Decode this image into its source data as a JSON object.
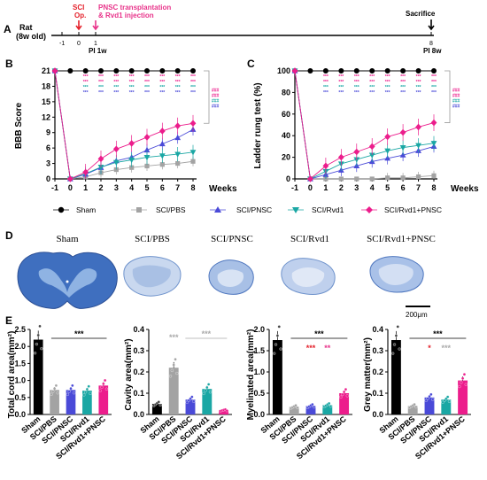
{
  "colors": {
    "sham": "#000000",
    "pbs": "#a3a3a3",
    "pnsc": "#4a4ad8",
    "rvd1": "#1aa7a4",
    "combo": "#ec1d8c",
    "red": "#e4202a",
    "pink": "#e8338a",
    "tissue": "#3f6fbf"
  },
  "timeline": {
    "panel": "A",
    "subject_line1": "Rat",
    "subject_line2": "(8w old)",
    "ticks": [
      "-1",
      "0",
      "1",
      "8"
    ],
    "sci_label1": "SCI",
    "sci_label2": "Op.",
    "pnsc_label1": "PNSC transplantation",
    "pnsc_label2": "& Rvd1 injection",
    "sacrifice_label": "Sacrifice",
    "pi1w": "PI 1w",
    "pi8w": "PI 8w"
  },
  "legend": {
    "items": [
      "Sham",
      "SCI/PBS",
      "SCI/PNSC",
      "SCI/Rvd1",
      "SCI/Rvd1+PNSC"
    ]
  },
  "tissue": {
    "panel": "D",
    "labels": [
      "Sham",
      "SCI/PBS",
      "SCI/PNSC",
      "SCI/Rvd1",
      "SCI/Rvd1+PNSC"
    ],
    "scale_bar": "200μm"
  },
  "chart_data": [
    {
      "panel": "B",
      "type": "line",
      "title": "",
      "xlabel": "Weeks",
      "ylabel": "BBB Score",
      "x": [
        -1,
        0,
        1,
        2,
        3,
        4,
        5,
        6,
        7,
        8
      ],
      "xticks": [
        "-1",
        "0",
        "1",
        "2",
        "3",
        "4",
        "5",
        "6",
        "7",
        "8"
      ],
      "yticks": [
        0,
        3,
        6,
        9,
        12,
        15,
        18,
        21
      ],
      "ylim": [
        0,
        21
      ],
      "series": [
        {
          "name": "Sham",
          "values": [
            21,
            21,
            21,
            21,
            21,
            21,
            21,
            21,
            21,
            21
          ]
        },
        {
          "name": "SCI/PBS",
          "values": [
            21,
            0,
            0.4,
            1.2,
            1.8,
            2.2,
            2.5,
            2.8,
            3.0,
            3.4
          ]
        },
        {
          "name": "SCI/PNSC",
          "values": [
            21,
            0,
            0.9,
            2.2,
            3.5,
            4.2,
            5.6,
            6.8,
            8.0,
            9.6
          ]
        },
        {
          "name": "SCI/Rvd1",
          "values": [
            21,
            0,
            1.0,
            2.3,
            3.2,
            3.7,
            4.2,
            4.5,
            4.8,
            5.2
          ]
        },
        {
          "name": "SCI/Rvd1+PNSC",
          "values": [
            21,
            0,
            1.3,
            3.9,
            5.8,
            6.9,
            8.1,
            9.3,
            10.3,
            10.8
          ]
        }
      ],
      "sig_stars": "***",
      "sig_hash": "###"
    },
    {
      "panel": "C",
      "type": "line",
      "title": "",
      "xlabel": "Weeks",
      "ylabel": "Ladder rung test (%)",
      "x": [
        -1,
        0,
        1,
        2,
        3,
        4,
        5,
        6,
        7,
        8
      ],
      "xticks": [
        "-1",
        "0",
        "1",
        "2",
        "3",
        "4",
        "5",
        "6",
        "7",
        "8"
      ],
      "yticks": [
        0,
        20,
        40,
        60,
        80,
        100
      ],
      "ylim": [
        0,
        100
      ],
      "series": [
        {
          "name": "Sham",
          "values": [
            100,
            100,
            100,
            100,
            100,
            100,
            100,
            100,
            100,
            100
          ]
        },
        {
          "name": "SCI/PBS",
          "values": [
            100,
            0,
            0,
            0,
            0,
            0,
            1,
            1,
            2,
            3
          ]
        },
        {
          "name": "SCI/PNSC",
          "values": [
            100,
            0,
            4,
            8,
            12,
            16,
            19,
            22,
            26,
            30
          ]
        },
        {
          "name": "SCI/Rvd1",
          "values": [
            100,
            0,
            7,
            14,
            18,
            22,
            26,
            29,
            31,
            33
          ]
        },
        {
          "name": "SCI/Rvd1+PNSC",
          "values": [
            100,
            0,
            12,
            20,
            25,
            30,
            39,
            43,
            48,
            52
          ]
        }
      ],
      "sig_stars": "***",
      "sig_hash": "###"
    },
    {
      "panel": "E",
      "type": "bar",
      "ylabel": "Total cord area(mm²)",
      "categories": [
        "Sham",
        "SCI/PBS",
        "SCI/PNSC",
        "SCI/Rvd1",
        "SCI/Rvd1+PNSC"
      ],
      "values": [
        2.2,
        0.72,
        0.72,
        0.7,
        0.85
      ],
      "yticks": [
        "0.0",
        "0.5",
        "1.0",
        "1.5",
        "2.0",
        "2.5"
      ],
      "ylim": [
        0,
        2.5
      ],
      "sig": "***"
    },
    {
      "panel": "E",
      "type": "bar",
      "ylabel": "Cavity area(mm²)",
      "categories": [
        "Sham",
        "SCI/PBS",
        "SCI/PNSC",
        "SCI/Rvd1",
        "SCI/Rvd1+PNSC"
      ],
      "values": [
        0.05,
        0.22,
        0.07,
        0.12,
        0.02
      ],
      "yticks": [
        "0.0",
        "0.1",
        "0.2",
        "0.3",
        "0.4"
      ],
      "ylim": [
        0,
        0.4
      ],
      "sig_left": "***",
      "sig_right": "***"
    },
    {
      "panel": "E",
      "type": "bar",
      "ylabel": "Myelinated area(mm²)",
      "categories": [
        "Sham",
        "SCI/PBS",
        "SCI/PNSC",
        "SCI/Rvd1",
        "SCI/Rvd1+PNSC"
      ],
      "values": [
        1.75,
        0.18,
        0.2,
        0.22,
        0.5
      ],
      "yticks": [
        "0.0",
        "0.5",
        "1.0",
        "1.5",
        "2.0"
      ],
      "ylim": [
        0,
        2.0
      ],
      "sig": "***",
      "sig_a": "***",
      "sig_b": "**"
    },
    {
      "panel": "E",
      "type": "bar",
      "ylabel": "Grey matter(mm²)",
      "categories": [
        "Sham",
        "SCI/PBS",
        "SCI/PNSC",
        "SCI/Rvd1",
        "SCI/Rvd1+PNSC"
      ],
      "values": [
        0.35,
        0.04,
        0.08,
        0.07,
        0.16
      ],
      "yticks": [
        "0.0",
        "0.1",
        "0.2",
        "0.3",
        "0.4"
      ],
      "ylim": [
        0,
        0.4
      ],
      "sig": "***",
      "sig_a": "*",
      "sig_b": "***"
    }
  ]
}
